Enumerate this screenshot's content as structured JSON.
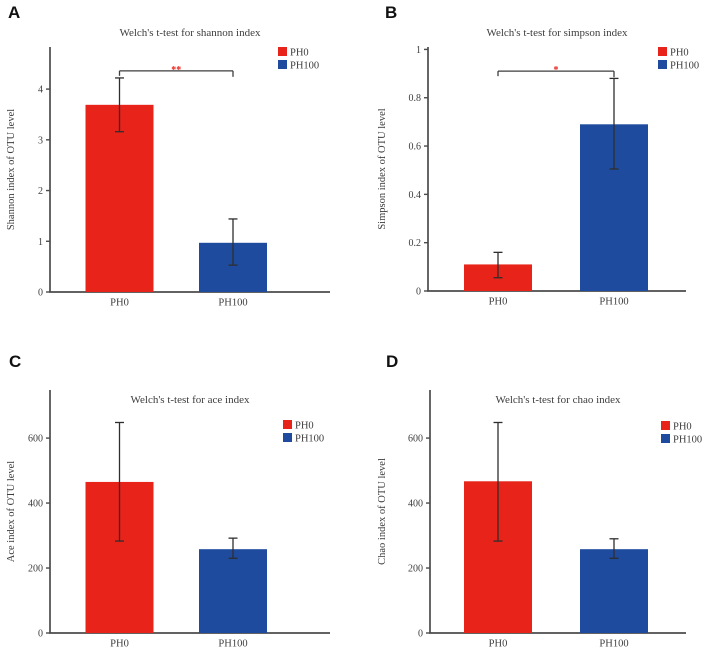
{
  "colors": {
    "ph0": "#e8231a",
    "ph100": "#1e4b9e",
    "axis": "#4b4b4b",
    "text": "#3d3d3d",
    "error_bar": "#2e2e2e",
    "significance": "#e8231a",
    "background": "#ffffff"
  },
  "legend_items": [
    "PH0",
    "PH100"
  ],
  "chart_data": [
    {
      "type": "bar",
      "panel": "A",
      "title": "Welch's t-test for shannon index",
      "ylabel": "Shannon index of OTU level",
      "xlabel": "",
      "categories": [
        "PH0",
        "PH100"
      ],
      "series": [
        {
          "name": "PH0",
          "value": 3.69,
          "err_low": 3.16,
          "err_high": 4.22,
          "color_key": "ph0"
        },
        {
          "name": "PH100",
          "value": 0.97,
          "err_low": 0.53,
          "err_high": 1.44,
          "color_key": "ph100"
        }
      ],
      "yticks": [
        0,
        1,
        2,
        3,
        4
      ],
      "ylim": [
        0,
        4.83
      ],
      "grid": false,
      "legend_position": "top-right",
      "significance": {
        "label": "**",
        "y": 4.36,
        "between": [
          "PH0",
          "PH100"
        ]
      }
    },
    {
      "type": "bar",
      "panel": "B",
      "title": "Welch's t-test for simpson index",
      "ylabel": "Simpson index of OTU level",
      "xlabel": "",
      "categories": [
        "PH0",
        "PH100"
      ],
      "series": [
        {
          "name": "PH0",
          "value": 0.11,
          "err_low": 0.055,
          "err_high": 0.16,
          "color_key": "ph0"
        },
        {
          "name": "PH100",
          "value": 0.69,
          "err_low": 0.505,
          "err_high": 0.88,
          "color_key": "ph100"
        }
      ],
      "yticks": [
        0,
        0.2,
        0.4,
        0.6,
        0.8,
        1
      ],
      "ylim": [
        0,
        1.01
      ],
      "grid": false,
      "legend_position": "top-right",
      "significance": {
        "label": "*",
        "y": 0.91,
        "between": [
          "PH0",
          "PH100"
        ]
      }
    },
    {
      "type": "bar",
      "panel": "C",
      "title": "Welch's t-test for ace index",
      "ylabel": "Ace index of OTU level",
      "xlabel": "",
      "categories": [
        "PH0",
        "PH100"
      ],
      "series": [
        {
          "name": "PH0",
          "value": 465,
          "err_low": 283,
          "err_high": 648,
          "color_key": "ph0"
        },
        {
          "name": "PH100",
          "value": 258,
          "err_low": 230,
          "err_high": 292,
          "color_key": "ph100"
        }
      ],
      "yticks": [
        0,
        200,
        400,
        600
      ],
      "ylim": [
        0,
        748
      ],
      "grid": false,
      "legend_position": "top-right",
      "significance": null
    },
    {
      "type": "bar",
      "panel": "D",
      "title": "Welch's t-test for chao index",
      "ylabel": "Chao index of OTU level",
      "xlabel": "",
      "categories": [
        "PH0",
        "PH100"
      ],
      "series": [
        {
          "name": "PH0",
          "value": 467,
          "err_low": 283,
          "err_high": 648,
          "color_key": "ph0"
        },
        {
          "name": "PH100",
          "value": 258,
          "err_low": 230,
          "err_high": 290,
          "color_key": "ph100"
        }
      ],
      "yticks": [
        0,
        200,
        400,
        600
      ],
      "ylim": [
        0,
        748
      ],
      "grid": false,
      "legend_position": "top-right",
      "significance": null
    }
  ]
}
